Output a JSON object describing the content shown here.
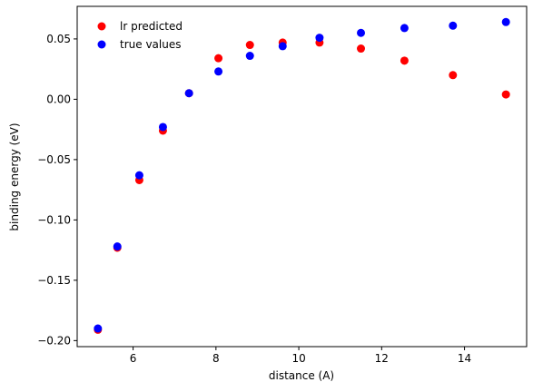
{
  "chart_data": {
    "type": "scatter",
    "xlabel": "distance (A)",
    "ylabel": "binding energy (eV)",
    "xlim": [
      4.65,
      15.5
    ],
    "ylim": [
      -0.205,
      0.077
    ],
    "xticks": [
      6,
      8,
      10,
      12,
      14
    ],
    "xtick_labels": [
      "6",
      "8",
      "10",
      "12",
      "14"
    ],
    "yticks": [
      -0.2,
      -0.15,
      -0.1,
      -0.05,
      0.0,
      0.05
    ],
    "ytick_labels": [
      "−0.20",
      "−0.15",
      "−0.10",
      "−0.05",
      "0.00",
      "0.05"
    ],
    "grid": false,
    "legend_position": "top-left",
    "series": [
      {
        "name": "lr predicted",
        "color": "#ff0000",
        "x": [
          5.15,
          5.62,
          6.15,
          6.72,
          7.35,
          8.06,
          8.82,
          9.61,
          10.5,
          11.5,
          12.55,
          13.72,
          15.0
        ],
        "y": [
          -0.191,
          -0.123,
          -0.067,
          -0.026,
          0.005,
          0.034,
          0.045,
          0.047,
          0.047,
          0.042,
          0.032,
          0.02,
          0.004
        ]
      },
      {
        "name": "true values",
        "color": "#0000ff",
        "x": [
          5.15,
          5.62,
          6.15,
          6.72,
          7.35,
          8.06,
          8.82,
          9.61,
          10.5,
          11.5,
          12.55,
          13.72,
          15.0
        ],
        "y": [
          -0.19,
          -0.122,
          -0.063,
          -0.023,
          0.005,
          0.023,
          0.036,
          0.044,
          0.051,
          0.055,
          0.059,
          0.061,
          0.064
        ]
      }
    ]
  }
}
